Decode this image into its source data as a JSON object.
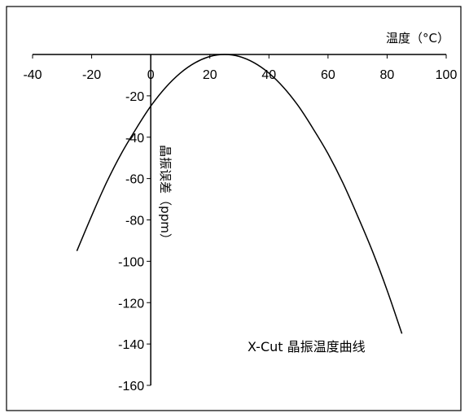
{
  "chart_data": {
    "type": "line",
    "title": "",
    "xlabel": "温度（°C）",
    "ylabel": "晶振误差（ppm）",
    "annotation": "X-Cut 晶振温度曲线",
    "xlim": [
      -40,
      100
    ],
    "ylim": [
      -160,
      0
    ],
    "x_ticks": [
      -40,
      -20,
      0,
      20,
      40,
      60,
      80,
      100
    ],
    "y_ticks": [
      -20,
      -40,
      -60,
      -80,
      -100,
      -120,
      -140,
      -160
    ],
    "x_tick_labels": [
      "-40",
      "-20",
      "0",
      "20",
      "40",
      "60",
      "80",
      "100"
    ],
    "y_tick_labels": [
      "-20",
      "-40",
      "-60",
      "-80",
      "-100",
      "-120",
      "-140",
      "-160"
    ],
    "grid": false,
    "legend": "none",
    "line_color": "#000000",
    "series": [
      {
        "x": [
          -25,
          -20,
          -15,
          -10,
          -5,
          0,
          5,
          10,
          15,
          20,
          25,
          30,
          35,
          40,
          45,
          50,
          55,
          60,
          65,
          70,
          75,
          80,
          85
        ],
        "values": [
          -95,
          -78,
          -62,
          -48,
          -36,
          -25,
          -16,
          -9,
          -4,
          -1,
          0,
          -1,
          -4,
          -9,
          -16,
          -25,
          -36,
          -48,
          -62,
          -78,
          -95,
          -114,
          -135
        ]
      }
    ]
  }
}
